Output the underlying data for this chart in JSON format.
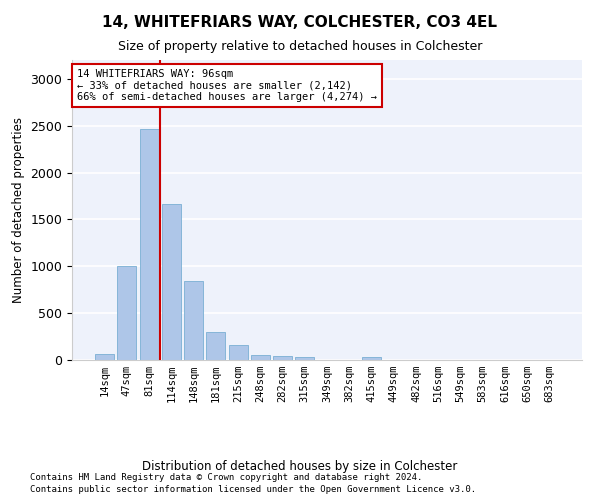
{
  "title": "14, WHITEFRIARS WAY, COLCHESTER, CO3 4EL",
  "subtitle": "Size of property relative to detached houses in Colchester",
  "xlabel": "Distribution of detached houses by size in Colchester",
  "ylabel": "Number of detached properties",
  "bar_color": "#aec6e8",
  "bar_edge_color": "#7aafd4",
  "background_color": "#eef2fb",
  "grid_color": "#ffffff",
  "bin_labels": [
    "14sqm",
    "47sqm",
    "81sqm",
    "114sqm",
    "148sqm",
    "181sqm",
    "215sqm",
    "248sqm",
    "282sqm",
    "315sqm",
    "349sqm",
    "382sqm",
    "415sqm",
    "449sqm",
    "482sqm",
    "516sqm",
    "549sqm",
    "583sqm",
    "616sqm",
    "650sqm",
    "683sqm"
  ],
  "bar_values": [
    60,
    1000,
    2460,
    1660,
    840,
    295,
    155,
    55,
    40,
    30,
    0,
    0,
    30,
    0,
    0,
    0,
    0,
    0,
    0,
    0,
    0
  ],
  "red_line_index": 2,
  "ylim": [
    0,
    3200
  ],
  "yticks": [
    0,
    500,
    1000,
    1500,
    2000,
    2500,
    3000
  ],
  "annotation_text": "14 WHITEFRIARS WAY: 96sqm\n← 33% of detached houses are smaller (2,142)\n66% of semi-detached houses are larger (4,274) →",
  "annotation_box_color": "#ffffff",
  "annotation_box_edge": "#cc0000",
  "red_line_color": "#cc0000",
  "footer_line1": "Contains HM Land Registry data © Crown copyright and database right 2024.",
  "footer_line2": "Contains public sector information licensed under the Open Government Licence v3.0."
}
